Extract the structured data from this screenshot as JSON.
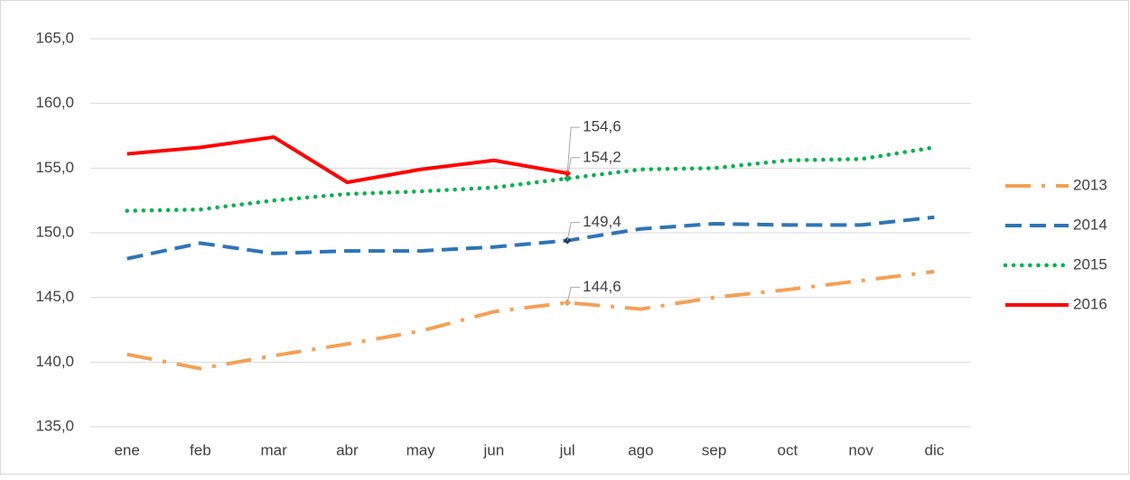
{
  "chart_data": {
    "type": "line",
    "categories": [
      "ene",
      "feb",
      "mar",
      "abr",
      "may",
      "jun",
      "jul",
      "ago",
      "sep",
      "oct",
      "nov",
      "dic"
    ],
    "ylim": [
      135,
      165
    ],
    "yticks": [
      {
        "value": 135,
        "label": "135,0"
      },
      {
        "value": 140,
        "label": "140,0"
      },
      {
        "value": 145,
        "label": "145,0"
      },
      {
        "value": 150,
        "label": "150,0"
      },
      {
        "value": 155,
        "label": "155,0"
      },
      {
        "value": 160,
        "label": "160,0"
      },
      {
        "value": 165,
        "label": "165,0"
      }
    ],
    "grid": true,
    "legend": "right",
    "series": [
      {
        "name": "2013",
        "color": "#f4a055",
        "style": "dash-dot",
        "values": [
          140.6,
          139.5,
          140.5,
          141.4,
          142.4,
          143.9,
          144.6,
          144.1,
          145.0,
          145.6,
          146.3,
          147.0
        ],
        "value_labels": [
          null,
          null,
          null,
          null,
          null,
          null,
          "144,6",
          null,
          null,
          null,
          null,
          null
        ]
      },
      {
        "name": "2014",
        "color": "#2e75b6",
        "style": "dash",
        "values": [
          148.0,
          149.2,
          148.4,
          148.6,
          148.6,
          148.9,
          149.4,
          150.3,
          150.7,
          150.6,
          150.6,
          151.2
        ],
        "value_labels": [
          null,
          null,
          null,
          null,
          null,
          null,
          "149,4",
          null,
          null,
          null,
          null,
          null
        ]
      },
      {
        "name": "2015",
        "color": "#00b050",
        "style": "dot",
        "values": [
          151.7,
          151.8,
          152.5,
          153.0,
          153.2,
          153.5,
          154.2,
          154.9,
          155.0,
          155.6,
          155.7,
          156.6
        ],
        "value_labels": [
          null,
          null,
          null,
          null,
          null,
          null,
          "154,2",
          null,
          null,
          null,
          null,
          null
        ]
      },
      {
        "name": "2016",
        "color": "#ff0000",
        "style": "solid",
        "values": [
          156.1,
          156.6,
          157.4,
          153.9,
          154.9,
          155.6,
          154.6,
          null,
          null,
          null,
          null,
          null
        ],
        "value_labels": [
          null,
          null,
          null,
          null,
          null,
          null,
          "154,6",
          null,
          null,
          null,
          null,
          null
        ]
      }
    ]
  }
}
